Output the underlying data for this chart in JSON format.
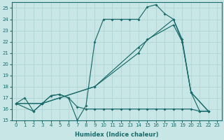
{
  "xlabel": "Humidex (Indice chaleur)",
  "xlim": [
    -0.5,
    23.5
  ],
  "ylim": [
    15,
    25.5
  ],
  "yticks": [
    15,
    16,
    17,
    18,
    19,
    20,
    21,
    22,
    23,
    24,
    25
  ],
  "xticks": [
    0,
    1,
    2,
    3,
    4,
    5,
    6,
    7,
    8,
    9,
    10,
    11,
    12,
    13,
    14,
    15,
    16,
    17,
    18,
    19,
    20,
    21,
    22,
    23
  ],
  "bg_color": "#c8e6e6",
  "grid_color": "#b0d4d4",
  "line_color": "#1a6b6b",
  "line1_x": [
    0,
    1,
    2,
    3,
    4,
    5,
    6,
    7,
    8,
    9,
    10,
    11,
    12,
    13,
    14,
    15,
    16,
    17,
    18,
    19,
    20,
    21,
    22
  ],
  "line1_y": [
    16.5,
    17.0,
    15.8,
    16.5,
    17.2,
    17.3,
    17.0,
    15.0,
    16.3,
    22.0,
    24.0,
    24.0,
    24.0,
    24.0,
    24.0,
    25.1,
    25.3,
    24.5,
    24.0,
    22.2,
    17.5,
    15.8,
    15.8
  ],
  "line2_x": [
    0,
    2,
    3,
    4,
    5,
    6,
    7,
    8,
    9,
    10,
    11,
    12,
    13,
    14,
    15,
    16,
    17,
    18,
    19,
    20,
    21,
    22
  ],
  "line2_y": [
    16.5,
    15.8,
    16.5,
    17.2,
    17.3,
    17.0,
    16.2,
    16.0,
    16.0,
    16.0,
    16.0,
    16.0,
    16.0,
    16.0,
    16.0,
    16.0,
    16.0,
    16.0,
    16.0,
    16.0,
    15.8,
    15.8
  ],
  "line3_x": [
    0,
    3,
    5,
    9,
    14,
    15,
    18,
    19,
    20,
    22
  ],
  "line3_y": [
    16.5,
    16.5,
    17.0,
    18.0,
    21.0,
    22.2,
    23.5,
    22.0,
    17.5,
    15.8
  ],
  "line4_x": [
    0,
    3,
    5,
    9,
    14,
    18,
    19,
    20,
    22
  ],
  "line4_y": [
    16.5,
    16.5,
    17.0,
    18.0,
    21.5,
    24.0,
    22.0,
    17.5,
    15.8
  ],
  "markersize": 2.0
}
